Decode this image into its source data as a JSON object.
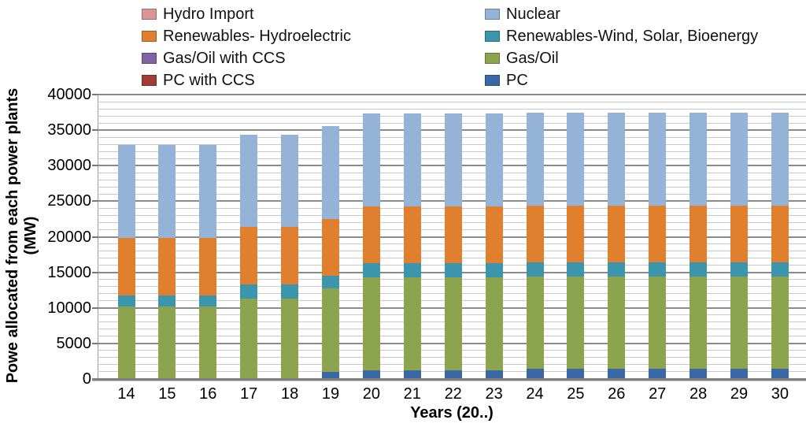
{
  "colors": {
    "background": "#ffffff",
    "major_gridline": "#8a8a8a",
    "minor_gridline": "#c9c9c9",
    "axis_line": "#808080"
  },
  "y_axis": {
    "title_line1": "Powe allocated from each power plants",
    "title_line2": "(MW)",
    "min": 0,
    "max": 40000,
    "major_step": 5000,
    "minor_step": 1000,
    "tick_labels": [
      "0",
      "5000",
      "10000",
      "15000",
      "20000",
      "25000",
      "30000",
      "35000",
      "40000"
    ]
  },
  "x_axis": {
    "title": "Years (20..)"
  },
  "legend": [
    {
      "label": "Hydro Import",
      "color": "#d99694",
      "col": 0,
      "row": 0
    },
    {
      "label": "Nuclear",
      "color": "#95b3d7",
      "col": 1,
      "row": 0
    },
    {
      "label": "Renewables- Hydroelectric",
      "color": "#e0802e",
      "col": 0,
      "row": 1
    },
    {
      "label": "Renewables-Wind, Solar, Bioenergy",
      "color": "#3b95ad",
      "col": 1,
      "row": 1
    },
    {
      "label": "Gas/Oil with CCS",
      "color": "#8064a2",
      "col": 0,
      "row": 2
    },
    {
      "label": "Gas/Oil",
      "color": "#8ca44e",
      "col": 1,
      "row": 2
    },
    {
      "label": "PC with CCS",
      "color": "#a23b38",
      "col": 0,
      "row": 3
    },
    {
      "label": "PC",
      "color": "#3a68a6",
      "col": 1,
      "row": 3
    }
  ],
  "chart_data": {
    "type": "bar",
    "stacked": true,
    "title": "",
    "xlabel": "Years (20..)",
    "ylabel": "Powe allocated from each power plants (MW)",
    "ylim": [
      0,
      40000
    ],
    "grid": {
      "major": 5000,
      "minor": 1000
    },
    "legend_position": "top-two-columns",
    "categories": [
      "14",
      "15",
      "16",
      "17",
      "18",
      "19",
      "20",
      "21",
      "22",
      "23",
      "24",
      "25",
      "26",
      "27",
      "28",
      "29",
      "30"
    ],
    "series": [
      {
        "name": "PC",
        "color": "#3a68a6",
        "values": [
          0,
          0,
          0,
          0,
          0,
          1000,
          1200,
          1200,
          1200,
          1200,
          1400,
          1400,
          1400,
          1400,
          1400,
          1400,
          1400
        ]
      },
      {
        "name": "PC with CCS",
        "color": "#a23b38",
        "values": [
          0,
          0,
          0,
          0,
          0,
          0,
          0,
          0,
          0,
          0,
          0,
          0,
          0,
          0,
          0,
          0,
          0
        ]
      },
      {
        "name": "Gas/Oil",
        "color": "#8ca44e",
        "values": [
          10200,
          10200,
          10200,
          11300,
          11300,
          11700,
          13100,
          13100,
          13100,
          13100,
          13000,
          13000,
          13000,
          13000,
          13000,
          13000,
          13000
        ]
      },
      {
        "name": "Gas/Oil with CCS",
        "color": "#8064a2",
        "values": [
          0,
          0,
          0,
          0,
          0,
          0,
          0,
          0,
          0,
          0,
          0,
          0,
          0,
          0,
          0,
          0,
          0
        ]
      },
      {
        "name": "Renewables-Wind, Solar, Bioenergy",
        "color": "#3b95ad",
        "values": [
          1600,
          1600,
          1600,
          2000,
          2000,
          1800,
          2000,
          2000,
          2000,
          2000,
          2000,
          2000,
          2000,
          2000,
          2000,
          2000,
          2000
        ]
      },
      {
        "name": "Renewables- Hydroelectric",
        "color": "#e0802e",
        "values": [
          8000,
          8000,
          8000,
          8100,
          8100,
          8000,
          8000,
          8000,
          8000,
          8000,
          8000,
          8000,
          8000,
          8000,
          8000,
          8000,
          8000
        ]
      },
      {
        "name": "Nuclear",
        "color": "#95b3d7",
        "values": [
          13100,
          13100,
          13100,
          13000,
          13000,
          13100,
          13000,
          13000,
          13000,
          13000,
          13100,
          13100,
          13100,
          13100,
          13100,
          13100,
          13100
        ]
      },
      {
        "name": "Hydro Import",
        "color": "#d99694",
        "values": [
          0,
          0,
          0,
          0,
          0,
          0,
          0,
          0,
          0,
          0,
          0,
          0,
          0,
          0,
          0,
          0,
          0
        ]
      }
    ]
  }
}
